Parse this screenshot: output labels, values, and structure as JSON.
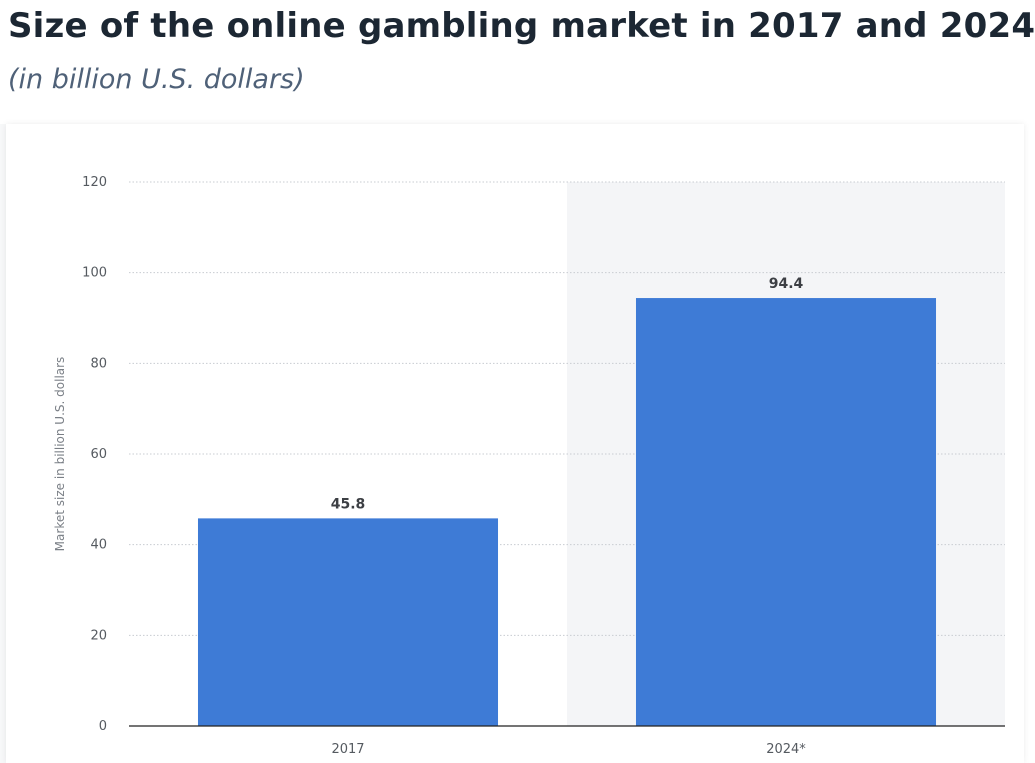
{
  "chart_data": {
    "type": "bar",
    "title": "Size of the online gambling market in 2017 and 2024",
    "subtitle": "(in billion U.S. dollars)",
    "xlabel": "",
    "ylabel": "Market size in billion U.S. dollars",
    "categories": [
      "2017",
      "2024*"
    ],
    "values": [
      45.8,
      94.4
    ],
    "data_labels": [
      "45.8",
      "94.4"
    ],
    "ylim": [
      0,
      120
    ],
    "yticks": [
      0,
      20,
      40,
      60,
      80,
      100,
      120
    ],
    "grid": true,
    "highlighted_category": "2024*",
    "colors": {
      "bar": "#3e7bd6",
      "grid": "#c8ccd1",
      "axis": "#222222",
      "forecast_band": "#f4f5f7"
    }
  }
}
